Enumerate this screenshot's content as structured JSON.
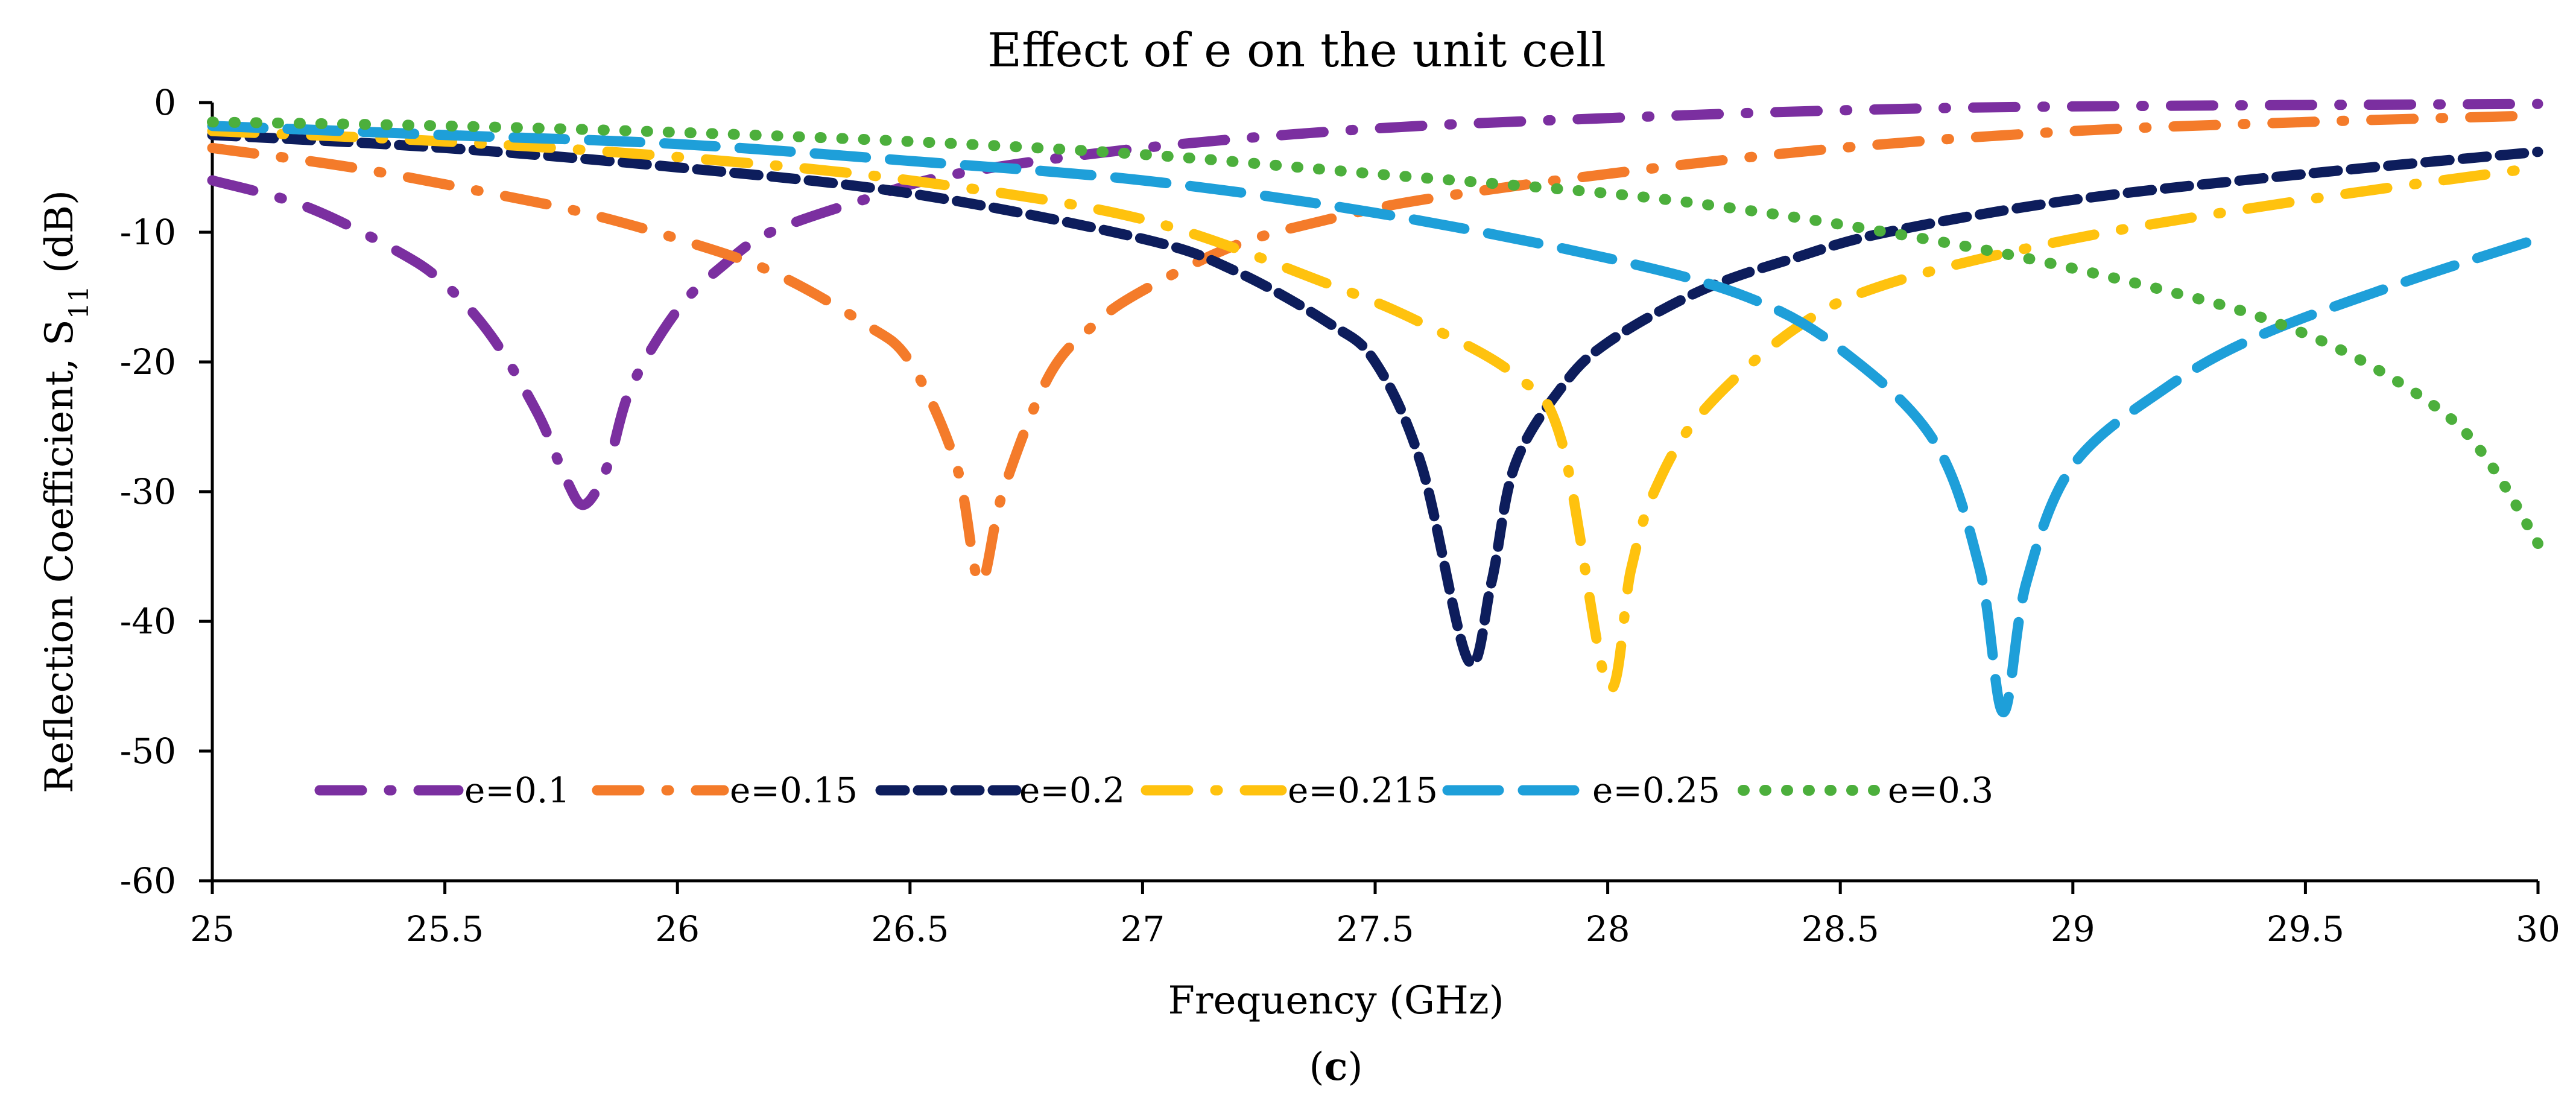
{
  "chart_data": {
    "type": "line",
    "title": "Effect of e on the unit cell",
    "xlabel": "Frequency (GHz)",
    "ylabel_main": "Reflection Coefficient, S",
    "ylabel_sub": "11",
    "ylabel_unit": " (dB)",
    "caption_open": "(",
    "caption_letter": "c",
    "caption_close": ")",
    "xlim": [
      25,
      30
    ],
    "ylim": [
      -60,
      0
    ],
    "xticks": [
      "25",
      "25.5",
      "26",
      "26.5",
      "27",
      "27.5",
      "28",
      "28.5",
      "29",
      "29.5",
      "30"
    ],
    "yticks": [
      "0",
      "-10",
      "-20",
      "-30",
      "-40",
      "-50",
      "-60"
    ],
    "legend_position": "bottom-left inside",
    "series": [
      {
        "name": "e=0.1",
        "color": "#7B2FA0",
        "style": "long-dash-dot",
        "points": [
          [
            25.0,
            -6
          ],
          [
            25.2,
            -8
          ],
          [
            25.4,
            -11.5
          ],
          [
            25.5,
            -14
          ],
          [
            25.6,
            -18
          ],
          [
            25.7,
            -24
          ],
          [
            25.76,
            -29
          ],
          [
            25.8,
            -31
          ],
          [
            25.85,
            -28
          ],
          [
            25.9,
            -22
          ],
          [
            26.0,
            -16
          ],
          [
            26.1,
            -12.5
          ],
          [
            26.2,
            -10
          ],
          [
            26.4,
            -7.5
          ],
          [
            26.6,
            -5.5
          ],
          [
            27.0,
            -3.5
          ],
          [
            27.5,
            -2
          ],
          [
            28.0,
            -1.2
          ],
          [
            28.5,
            -0.6
          ],
          [
            29.0,
            -0.3
          ],
          [
            30.0,
            -0.1
          ]
        ]
      },
      {
        "name": "e=0.15",
        "color": "#F47B2A",
        "style": "long-dash-dot",
        "points": [
          [
            25.0,
            -3.5
          ],
          [
            25.3,
            -5
          ],
          [
            25.6,
            -7
          ],
          [
            25.8,
            -8.5
          ],
          [
            26.0,
            -10.5
          ],
          [
            26.2,
            -13
          ],
          [
            26.4,
            -17
          ],
          [
            26.5,
            -20
          ],
          [
            26.6,
            -28
          ],
          [
            26.65,
            -37
          ],
          [
            26.7,
            -30
          ],
          [
            26.8,
            -21
          ],
          [
            26.9,
            -17
          ],
          [
            27.0,
            -14.5
          ],
          [
            27.2,
            -11
          ],
          [
            27.4,
            -9
          ],
          [
            27.6,
            -7.5
          ],
          [
            28.0,
            -5.5
          ],
          [
            28.5,
            -3.5
          ],
          [
            29.0,
            -2.2
          ],
          [
            29.5,
            -1.5
          ],
          [
            30.0,
            -1
          ]
        ]
      },
      {
        "name": "e=0.2",
        "color": "#0D1D5C",
        "style": "dash",
        "points": [
          [
            25.0,
            -2.5
          ],
          [
            25.5,
            -3.5
          ],
          [
            26.0,
            -5
          ],
          [
            26.5,
            -7
          ],
          [
            27.0,
            -10.5
          ],
          [
            27.2,
            -13
          ],
          [
            27.4,
            -17
          ],
          [
            27.5,
            -20
          ],
          [
            27.6,
            -28
          ],
          [
            27.7,
            -43
          ],
          [
            27.75,
            -37
          ],
          [
            27.8,
            -28
          ],
          [
            27.9,
            -22
          ],
          [
            28.0,
            -18.5
          ],
          [
            28.2,
            -14.5
          ],
          [
            28.4,
            -12
          ],
          [
            28.6,
            -10
          ],
          [
            29.0,
            -7.5
          ],
          [
            29.5,
            -5.5
          ],
          [
            30.0,
            -3.8
          ]
        ]
      },
      {
        "name": "e=0.215",
        "color": "#FFC20E",
        "style": "long-dash-dot",
        "points": [
          [
            25.0,
            -2.2
          ],
          [
            25.5,
            -3
          ],
          [
            26.0,
            -4.2
          ],
          [
            26.5,
            -6
          ],
          [
            27.0,
            -9
          ],
          [
            27.4,
            -14
          ],
          [
            27.6,
            -17
          ],
          [
            27.8,
            -21
          ],
          [
            27.9,
            -26
          ],
          [
            28.0,
            -45
          ],
          [
            28.05,
            -36
          ],
          [
            28.1,
            -30
          ],
          [
            28.2,
            -24
          ],
          [
            28.4,
            -17.5
          ],
          [
            28.6,
            -14
          ],
          [
            29.0,
            -10.5
          ],
          [
            29.5,
            -7.5
          ],
          [
            30.0,
            -5
          ]
        ]
      },
      {
        "name": "e=0.25",
        "color": "#1E9FD9",
        "style": "long-dash",
        "points": [
          [
            25.0,
            -1.8
          ],
          [
            25.5,
            -2.5
          ],
          [
            26.0,
            -3.2
          ],
          [
            26.5,
            -4.5
          ],
          [
            27.0,
            -6
          ],
          [
            27.5,
            -8.5
          ],
          [
            28.0,
            -12
          ],
          [
            28.3,
            -15
          ],
          [
            28.5,
            -19
          ],
          [
            28.7,
            -26
          ],
          [
            28.8,
            -36
          ],
          [
            28.85,
            -47
          ],
          [
            28.9,
            -37
          ],
          [
            29.0,
            -28
          ],
          [
            29.2,
            -22
          ],
          [
            29.4,
            -18
          ],
          [
            29.7,
            -14
          ],
          [
            30.0,
            -10.5
          ]
        ]
      },
      {
        "name": "e=0.3",
        "color": "#4CAF3C",
        "style": "dotted",
        "points": [
          [
            25.0,
            -1.5
          ],
          [
            25.5,
            -1.8
          ],
          [
            26.0,
            -2.3
          ],
          [
            26.5,
            -3
          ],
          [
            27.0,
            -4
          ],
          [
            27.5,
            -5.5
          ],
          [
            28.0,
            -7
          ],
          [
            28.3,
            -8.3
          ],
          [
            28.6,
            -10
          ],
          [
            28.9,
            -12
          ],
          [
            29.2,
            -14.5
          ],
          [
            29.4,
            -16.5
          ],
          [
            29.6,
            -19.5
          ],
          [
            29.8,
            -24
          ],
          [
            29.9,
            -28
          ],
          [
            30.0,
            -34
          ]
        ]
      }
    ]
  }
}
